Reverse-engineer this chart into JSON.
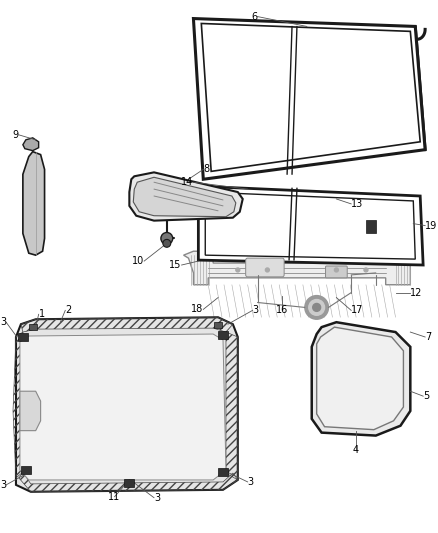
{
  "bg_color": "#ffffff",
  "fig_width": 4.38,
  "fig_height": 5.33,
  "dpi": 100,
  "line_color": "#1a1a1a",
  "label_color": "#000000",
  "label_fontsize": 7.0,
  "leader_color": "#555555",
  "leader_lw": 0.6
}
